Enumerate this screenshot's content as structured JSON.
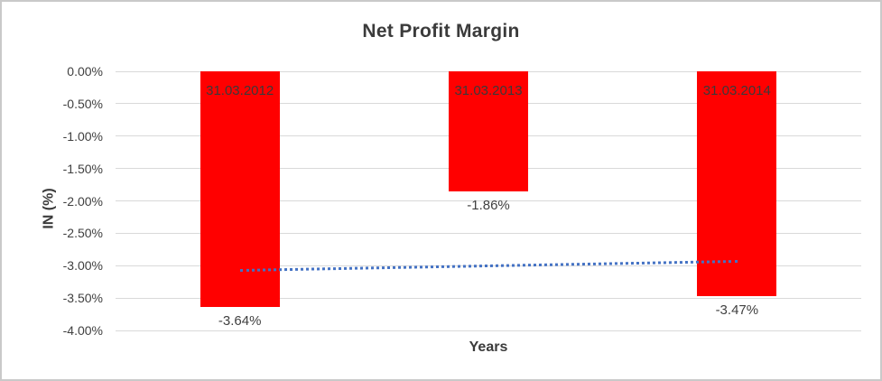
{
  "chart_data": {
    "type": "bar",
    "title": "Net Profit Margin",
    "xlabel": "Years",
    "ylabel": "IN (%)",
    "categories": [
      "31.03.2012",
      "31.03.2013",
      "31.03.2014"
    ],
    "values": [
      -3.64,
      -1.86,
      -3.47
    ],
    "value_labels": [
      "-3.64%",
      "-1.86%",
      "-3.47%"
    ],
    "yticks": [
      "0.00%",
      "-0.50%",
      "-1.00%",
      "-1.50%",
      "-2.00%",
      "-2.50%",
      "-3.00%",
      "-3.50%",
      "-4.00%"
    ],
    "ylim": [
      0,
      -4
    ],
    "grid": true,
    "legend_position": "none",
    "bar_color": "#FF0000",
    "gridline_color": "#D9D9D9",
    "text_color": "#404040",
    "trendline": {
      "style": "dotted",
      "color": "#4472C4",
      "start_value": -3.07,
      "end_value": -2.93
    }
  }
}
